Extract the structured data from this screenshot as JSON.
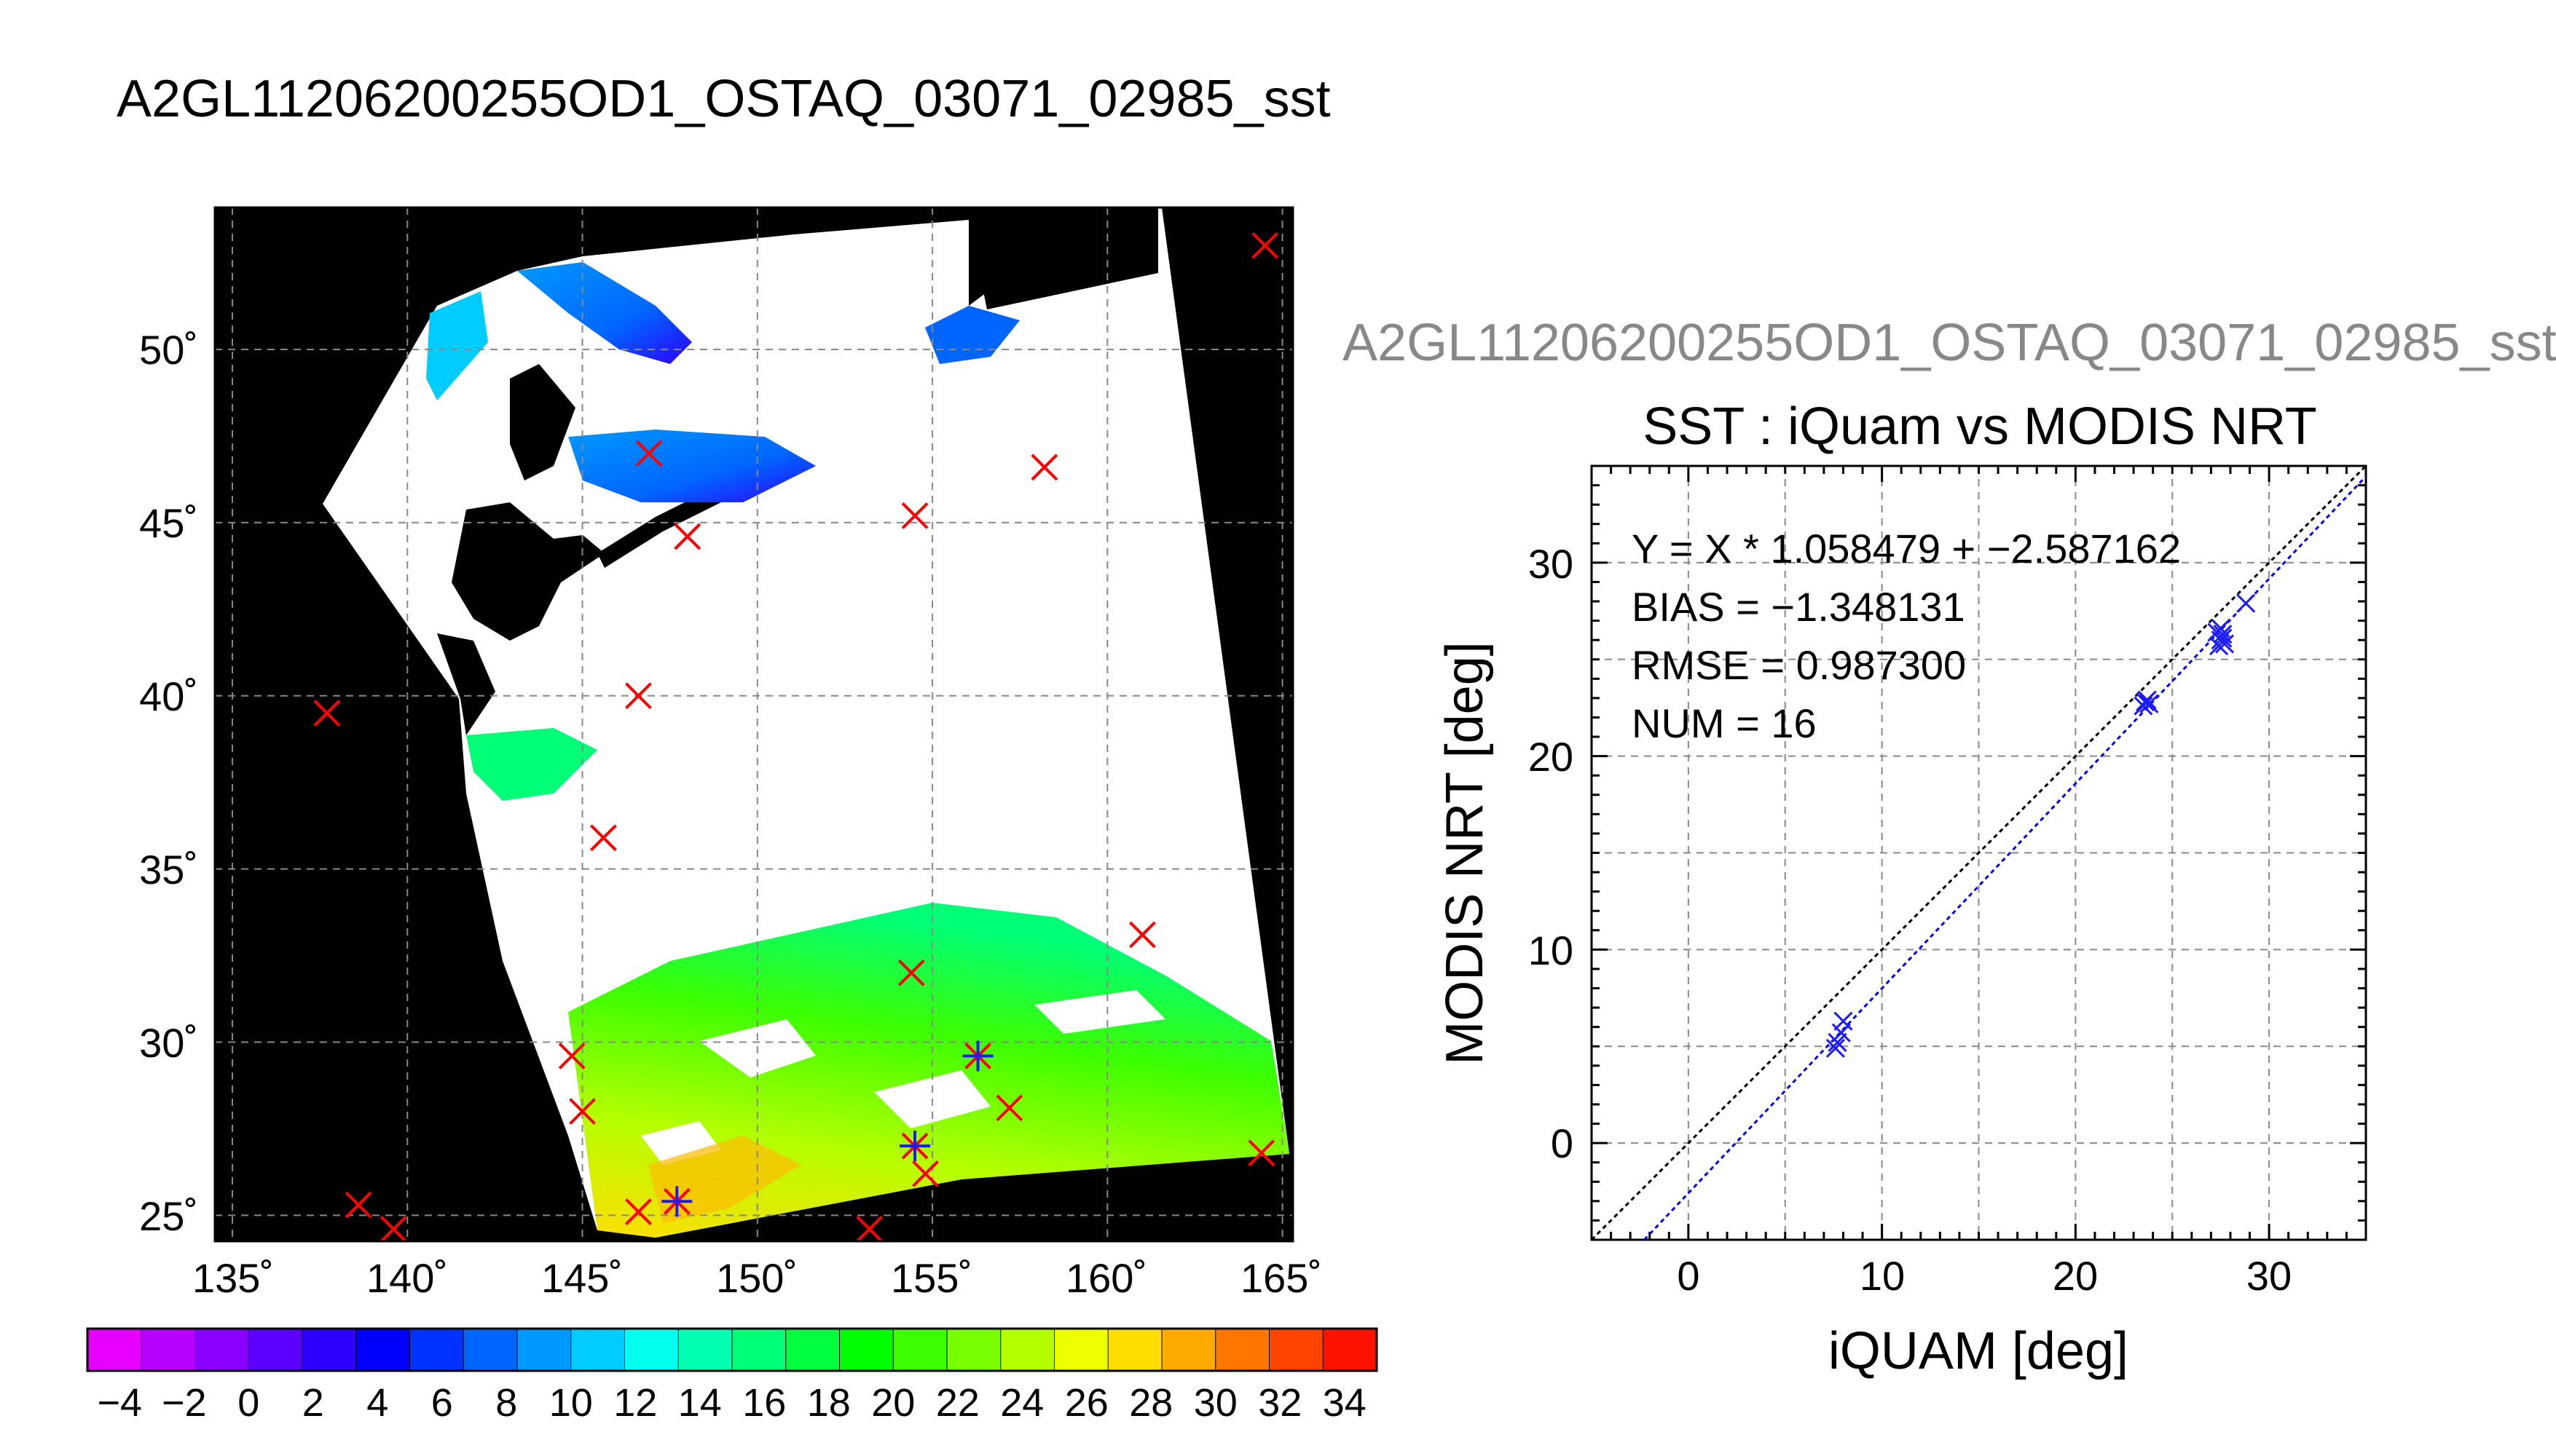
{
  "main_title": "A2GL11206200255OD1_OSTAQ_03071_02985_sst",
  "map": {
    "lon_ticks": [
      "135˚",
      "140˚",
      "145˚",
      "150˚",
      "155˚",
      "160˚",
      "165˚"
    ],
    "lat_ticks": [
      "25˚",
      "30˚",
      "35˚",
      "40˚",
      "45˚",
      "50˚"
    ],
    "colorbar": {
      "tick_labels": [
        "−4",
        "−2",
        "0",
        "2",
        "4",
        "6",
        "8",
        "10",
        "12",
        "14",
        "16",
        "18",
        "20",
        "22",
        "24",
        "26",
        "28",
        "30",
        "32",
        "34"
      ],
      "colors": [
        "#e600ff",
        "#b800ff",
        "#8a00ff",
        "#5c00ff",
        "#2e00ff",
        "#0000ff",
        "#0033ff",
        "#0066ff",
        "#0099ff",
        "#00ccff",
        "#00ffee",
        "#00ffb3",
        "#00ff77",
        "#00ff3c",
        "#00ff00",
        "#3cff00",
        "#77ff00",
        "#b3ff00",
        "#eeff00",
        "#ffdd00",
        "#ffaa00",
        "#ff7700",
        "#ff4400",
        "#ff1100"
      ]
    },
    "legend_colors": {
      "match_marker": "#ff0000",
      "overlap_marker": "#1a1aff",
      "land": "#000000",
      "cloud": "#ffffff"
    }
  },
  "scatter": {
    "subtitle": "A2GL11206200255OD1_OSTAQ_03071_02985_sst",
    "title": "SST : iQuam vs MODIS NRT",
    "stats": [
      "Y = X * 1.058479 + −2.587162",
      "BIAS = −1.348131",
      "RMSE = 0.987300",
      "NUM = 16"
    ],
    "xlabel": "iQUAM [deg]",
    "ylabel": "MODIS NRT [deg]",
    "x_ticks": [
      "0",
      "10",
      "20",
      "30"
    ],
    "y_ticks": [
      "0",
      "10",
      "20",
      "30"
    ]
  },
  "chart_data": {
    "type": "scatter",
    "title": "SST : iQuam vs MODIS NRT",
    "xlabel": "iQUAM [deg]",
    "ylabel": "MODIS NRT [deg]",
    "xlim": [
      -5,
      35
    ],
    "ylim": [
      -5,
      35
    ],
    "grid": true,
    "points": [
      {
        "x": 7.6,
        "y": 4.9
      },
      {
        "x": 7.7,
        "y": 5.2
      },
      {
        "x": 7.9,
        "y": 5.7
      },
      {
        "x": 8.0,
        "y": 6.3
      },
      {
        "x": 23.5,
        "y": 22.6
      },
      {
        "x": 23.6,
        "y": 22.8
      },
      {
        "x": 23.7,
        "y": 22.9
      },
      {
        "x": 23.8,
        "y": 22.7
      },
      {
        "x": 27.4,
        "y": 25.7
      },
      {
        "x": 27.5,
        "y": 26.0
      },
      {
        "x": 27.6,
        "y": 26.3
      },
      {
        "x": 27.5,
        "y": 26.6
      },
      {
        "x": 27.7,
        "y": 25.8
      },
      {
        "x": 27.6,
        "y": 26.1
      },
      {
        "x": 28.8,
        "y": 27.9
      },
      {
        "x": 27.3,
        "y": 26.4
      }
    ],
    "lines": [
      {
        "type": "identity",
        "slope": 1.0,
        "intercept": 0.0,
        "color": "#000000",
        "style": "dotted"
      },
      {
        "type": "fit",
        "slope": 1.058479,
        "intercept": -2.587162,
        "color": "#0000ff",
        "style": "dotted"
      }
    ],
    "map_markers": [
      {
        "lon": 164.5,
        "lat": 53.0,
        "overlap": false
      },
      {
        "lon": 146.9,
        "lat": 47.0,
        "overlap": false
      },
      {
        "lon": 148.0,
        "lat": 44.6,
        "overlap": false
      },
      {
        "lon": 154.5,
        "lat": 45.2,
        "overlap": false
      },
      {
        "lon": 158.2,
        "lat": 46.6,
        "overlap": false
      },
      {
        "lon": 137.7,
        "lat": 39.5,
        "overlap": false
      },
      {
        "lon": 146.6,
        "lat": 40.0,
        "overlap": false
      },
      {
        "lon": 145.6,
        "lat": 35.9,
        "overlap": false
      },
      {
        "lon": 161.0,
        "lat": 33.1,
        "overlap": false
      },
      {
        "lon": 154.4,
        "lat": 32.0,
        "overlap": false
      },
      {
        "lon": 144.7,
        "lat": 29.6,
        "overlap": false
      },
      {
        "lon": 145.0,
        "lat": 28.0,
        "overlap": false
      },
      {
        "lon": 157.2,
        "lat": 28.1,
        "overlap": false
      },
      {
        "lon": 156.3,
        "lat": 29.6,
        "overlap": true
      },
      {
        "lon": 154.5,
        "lat": 27.0,
        "overlap": true
      },
      {
        "lon": 154.8,
        "lat": 26.2,
        "overlap": false
      },
      {
        "lon": 147.7,
        "lat": 25.4,
        "overlap": true
      },
      {
        "lon": 146.6,
        "lat": 25.1,
        "overlap": false
      },
      {
        "lon": 138.6,
        "lat": 25.3,
        "overlap": false
      },
      {
        "lon": 139.6,
        "lat": 24.6,
        "overlap": false
      },
      {
        "lon": 153.2,
        "lat": 24.6,
        "overlap": false
      },
      {
        "lon": 164.4,
        "lat": 26.8,
        "overlap": false
      }
    ]
  }
}
